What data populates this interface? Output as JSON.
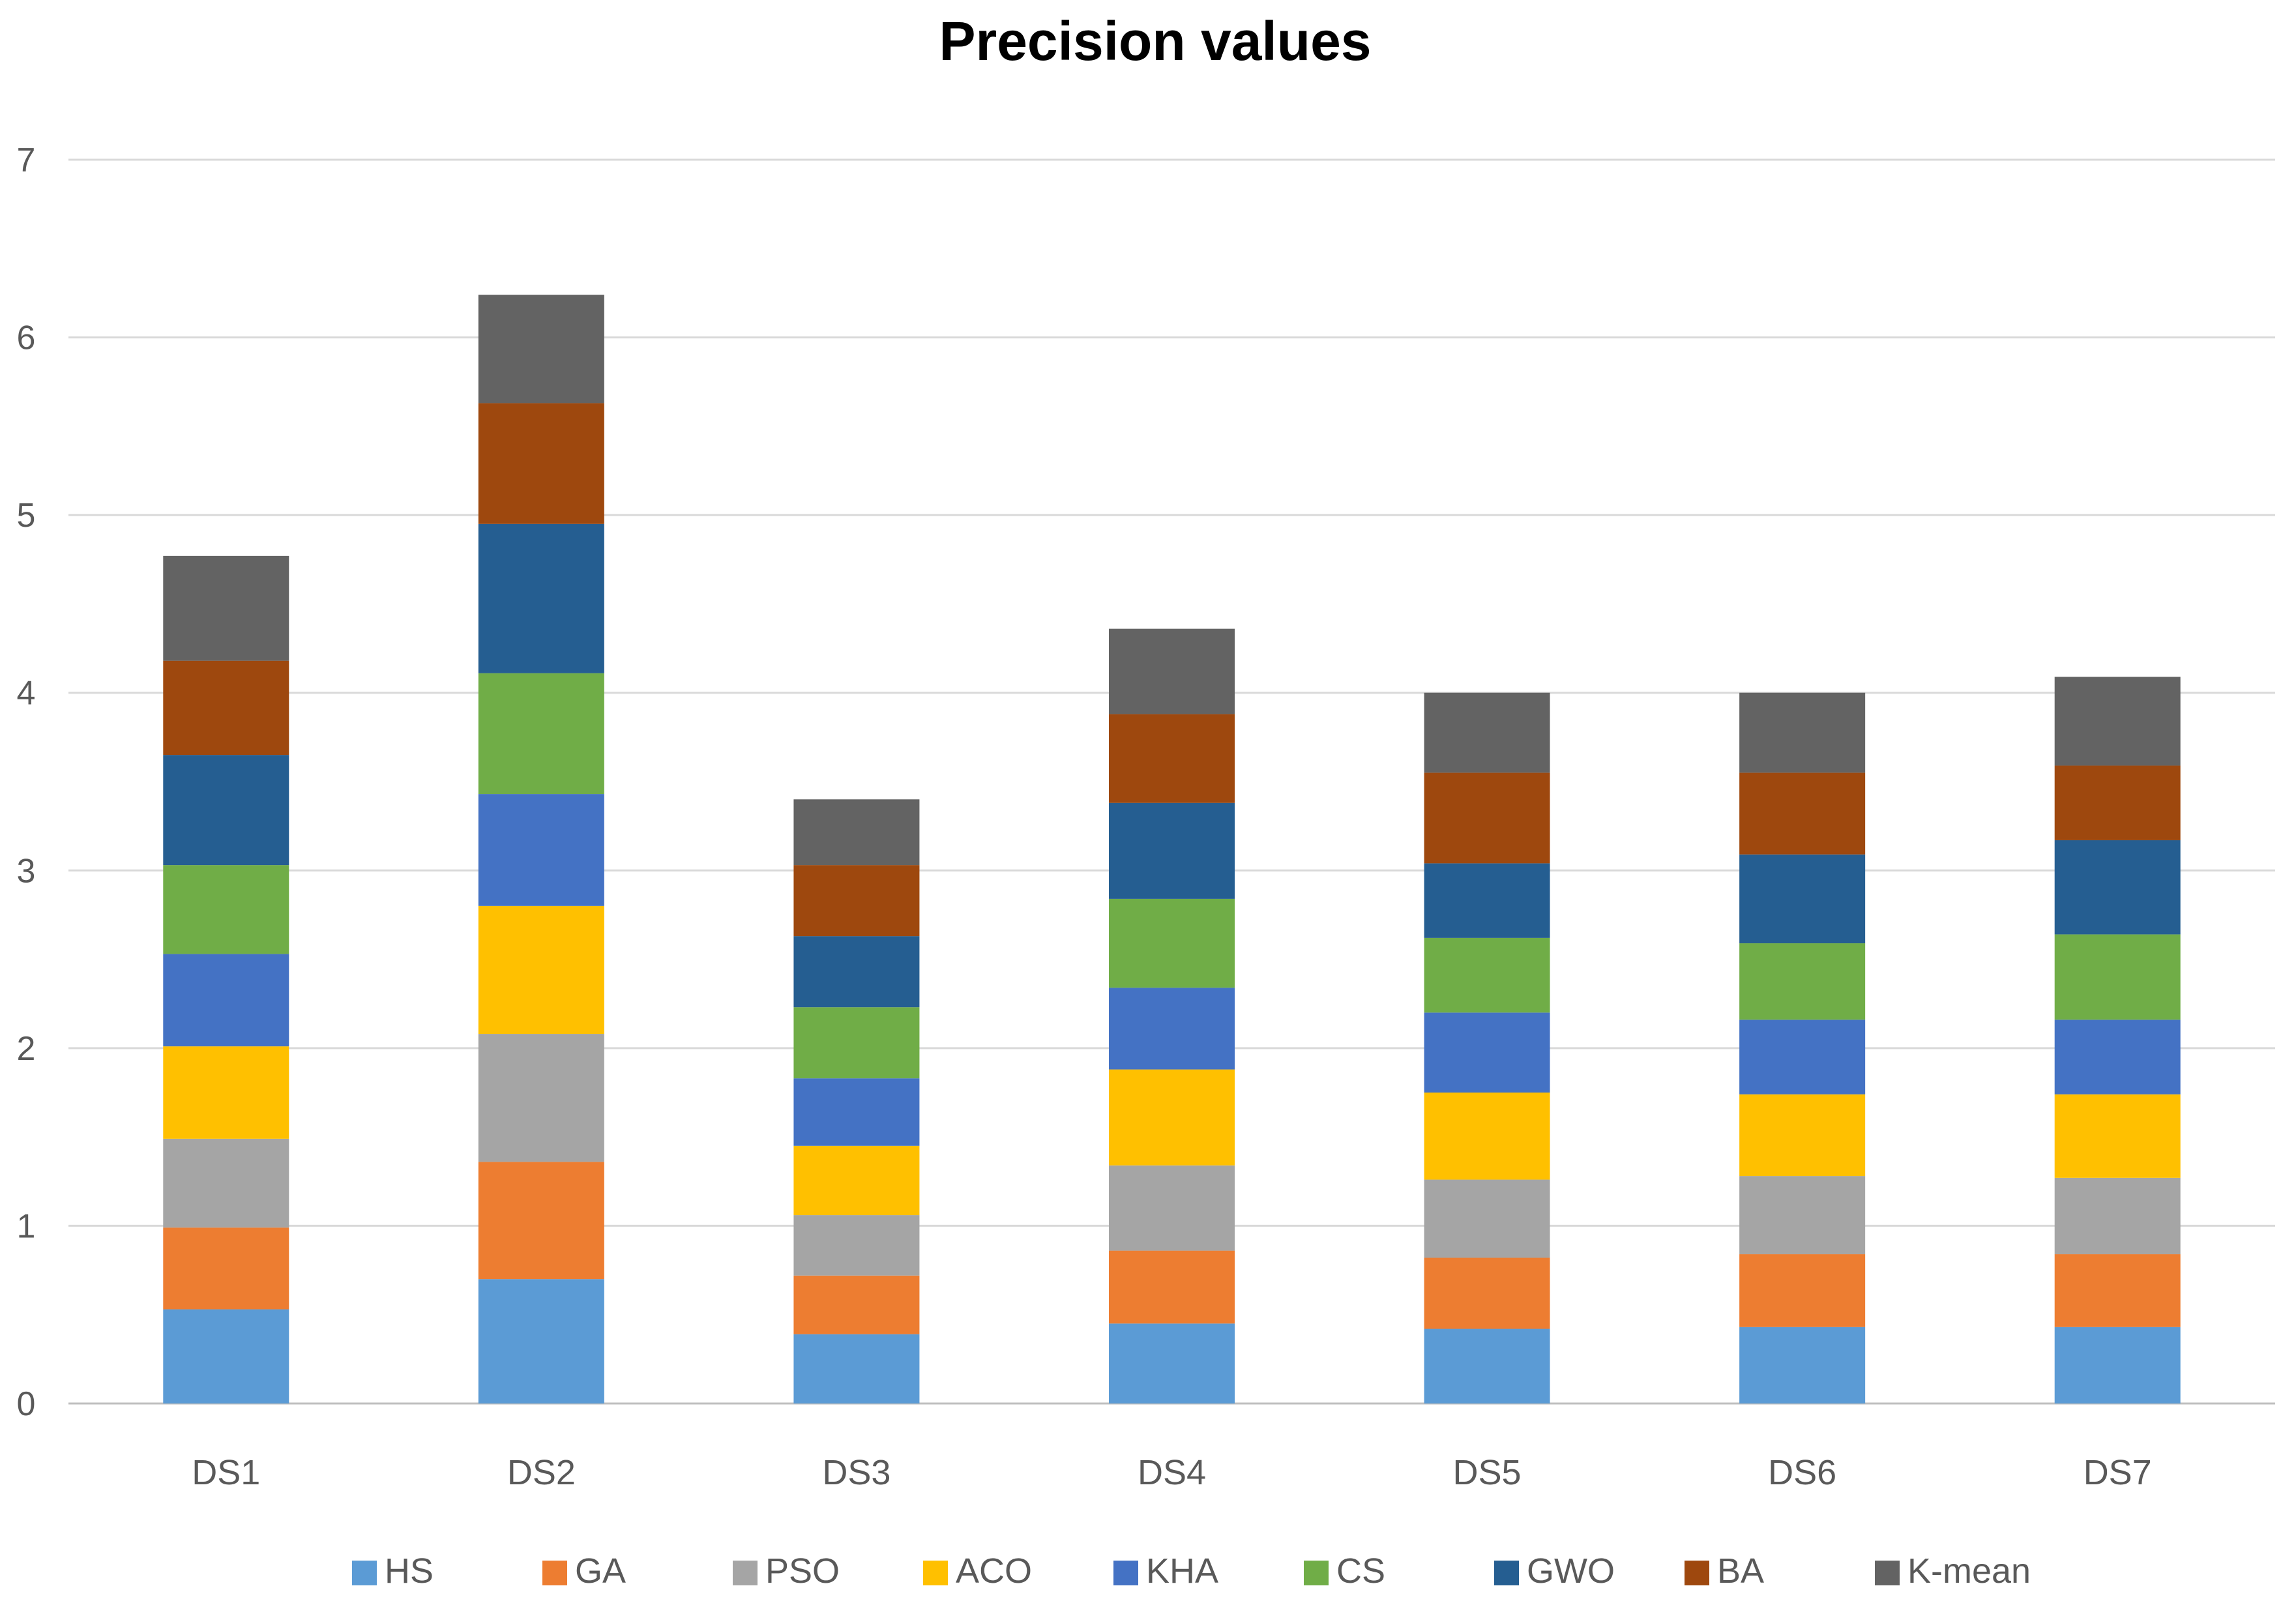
{
  "chart_data": {
    "type": "bar",
    "stacked": true,
    "title": "Precision values",
    "xlabel": "",
    "ylabel": "",
    "ylim": [
      0,
      7
    ],
    "yticks": [
      "0",
      "1",
      "2",
      "3",
      "4",
      "5",
      "6",
      "7"
    ],
    "grid": true,
    "legend_position": "bottom",
    "categories": [
      "DS1",
      "DS2",
      "DS3",
      "DS4",
      "DS5",
      "DS6",
      "DS7"
    ],
    "series": [
      {
        "name": "HS",
        "color": "#5B9BD5",
        "values": [
          0.53,
          0.7,
          0.39,
          0.45,
          0.42,
          0.43,
          0.43
        ]
      },
      {
        "name": "GA",
        "color": "#ED7D31",
        "values": [
          0.46,
          0.66,
          0.33,
          0.41,
          0.4,
          0.41,
          0.41
        ]
      },
      {
        "name": "PSO",
        "color": "#A5A5A5",
        "values": [
          0.5,
          0.72,
          0.34,
          0.48,
          0.44,
          0.44,
          0.43
        ]
      },
      {
        "name": "ACO",
        "color": "#FFC000",
        "values": [
          0.52,
          0.72,
          0.39,
          0.54,
          0.49,
          0.46,
          0.47
        ]
      },
      {
        "name": "KHA",
        "color": "#4472C4",
        "values": [
          0.52,
          0.63,
          0.38,
          0.46,
          0.45,
          0.42,
          0.42
        ]
      },
      {
        "name": "CS",
        "color": "#70AD47",
        "values": [
          0.5,
          0.68,
          0.4,
          0.5,
          0.42,
          0.43,
          0.48
        ]
      },
      {
        "name": "GWO",
        "color": "#255E91",
        "values": [
          0.62,
          0.84,
          0.4,
          0.54,
          0.42,
          0.5,
          0.53
        ]
      },
      {
        "name": "BA",
        "color": "#9E480E",
        "values": [
          0.53,
          0.68,
          0.4,
          0.5,
          0.51,
          0.46,
          0.42
        ]
      },
      {
        "name": "K-mean",
        "color": "#636363",
        "values": [
          0.59,
          0.61,
          0.37,
          0.48,
          0.45,
          0.45,
          0.5
        ]
      }
    ]
  }
}
